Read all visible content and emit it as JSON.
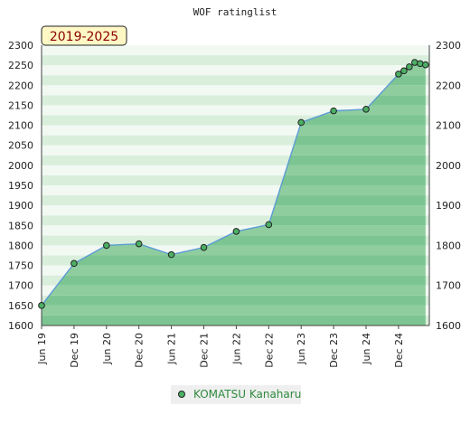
{
  "chart_data": {
    "type": "area",
    "title": "WOF ratinglist",
    "period_label": "2019-2025",
    "x_tick_labels": [
      "Jun 19",
      "Dec 19",
      "Jun 20",
      "Dec 20",
      "Jun 21",
      "Dec 21",
      "Jun 22",
      "Dec 22",
      "Jun 23",
      "Dec 23",
      "Jun 24",
      "Dec 24"
    ],
    "left_axis": {
      "ylim": [
        1600,
        2300
      ],
      "ticks": [
        1600,
        1650,
        1700,
        1750,
        1800,
        1850,
        1900,
        1950,
        2000,
        2050,
        2100,
        2150,
        2200,
        2250,
        2300
      ]
    },
    "right_axis": {
      "ylim": [
        1600,
        2300
      ],
      "ticks": [
        1600,
        1700,
        1800,
        1900,
        2000,
        2100,
        2200,
        2300
      ]
    },
    "series": [
      {
        "name": "KOMATSU Kanaharu",
        "x": [
          "2019-06",
          "2019-12",
          "2020-06",
          "2020-12",
          "2021-06",
          "2021-12",
          "2022-06",
          "2022-12",
          "2023-06",
          "2023-12",
          "2024-06",
          "2024-12",
          "2025-01",
          "2025-02",
          "2025-03",
          "2025-04",
          "2025-05"
        ],
        "values": [
          1650,
          1755,
          1800,
          1804,
          1777,
          1795,
          1835,
          1852,
          2107,
          2136,
          2140,
          2228,
          2236,
          2246,
          2257,
          2254,
          2251
        ]
      }
    ],
    "legend": {
      "position": "bottom-center"
    },
    "colors": {
      "line": "#5b9bd5",
      "fill": "#6dbf7e",
      "marker": "#4caf64",
      "period_box": "#fff8c4",
      "band_light": "#f2f9f3",
      "band_dark": "#b6dfc0"
    }
  }
}
